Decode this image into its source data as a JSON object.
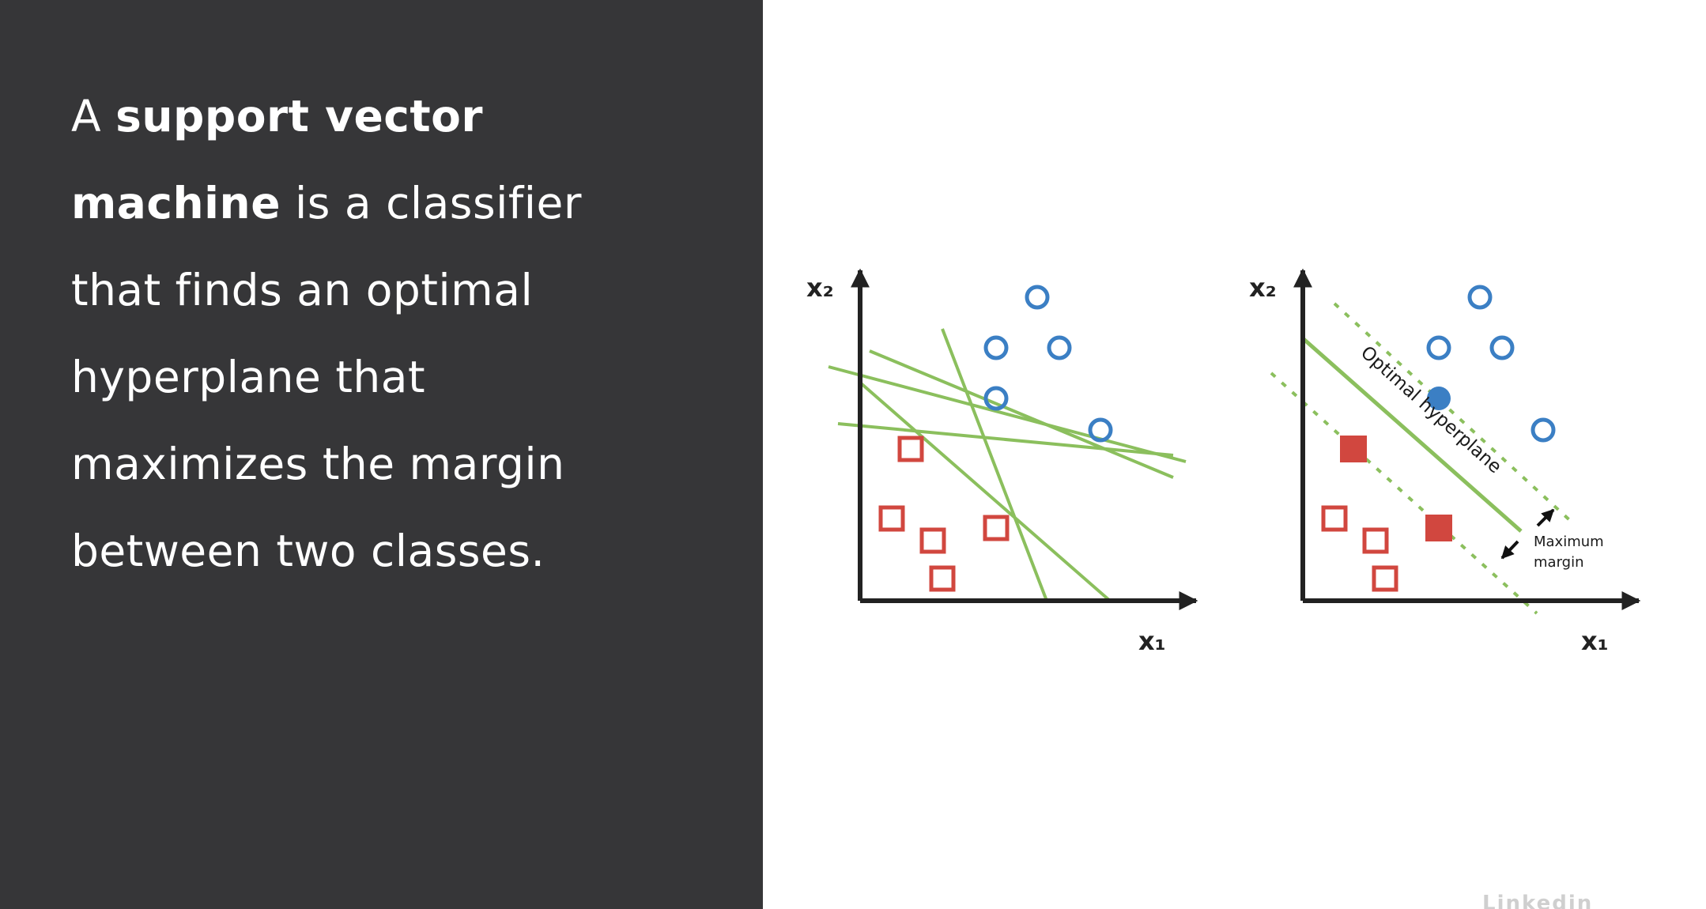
{
  "definition": {
    "lines": [
      [
        {
          "text": "A ",
          "bold": false
        },
        {
          "text": "support vector",
          "bold": true
        }
      ],
      [
        {
          "text": "machine",
          "bold": true
        },
        {
          "text": " is a classifier",
          "bold": false
        }
      ],
      [
        {
          "text": "that finds an optimal",
          "bold": false
        }
      ],
      [
        {
          "text": "hyperplane that",
          "bold": false
        }
      ],
      [
        {
          "text": "maximizes the margin",
          "bold": false
        }
      ],
      [
        {
          "text": "between two classes.",
          "bold": false
        }
      ]
    ]
  },
  "colors": {
    "panel_bg": "#363638",
    "circle_class": "#3b7fc4",
    "square_class": "#d1473f",
    "line": "#8bbf5d",
    "axis": "#222222"
  },
  "diagram_left": {
    "x_label": "x₁",
    "y_label": "x₂",
    "circles": [
      {
        "x": 5.6,
        "y": 9.6
      },
      {
        "x": 4.3,
        "y": 8.0
      },
      {
        "x": 6.3,
        "y": 8.0
      },
      {
        "x": 4.3,
        "y": 6.4
      },
      {
        "x": 7.6,
        "y": 5.4
      }
    ],
    "squares": [
      {
        "x": 1.6,
        "y": 4.8
      },
      {
        "x": 1.0,
        "y": 2.6
      },
      {
        "x": 2.3,
        "y": 1.9
      },
      {
        "x": 4.3,
        "y": 2.3
      },
      {
        "x": 2.6,
        "y": 0.7
      }
    ],
    "candidate_lines": [
      {
        "x1": -1.0,
        "y1": 7.4,
        "x2": 10.3,
        "y2": 4.4
      },
      {
        "x1": 0.3,
        "y1": 7.9,
        "x2": 9.9,
        "y2": 3.9
      },
      {
        "x1": -0.7,
        "y1": 5.6,
        "x2": 9.9,
        "y2": 4.6
      },
      {
        "x1": 2.6,
        "y1": 8.6,
        "x2": 5.9,
        "y2": 0.0
      },
      {
        "x1": 0.0,
        "y1": 6.9,
        "x2": 7.9,
        "y2": 0.0
      }
    ]
  },
  "diagram_right": {
    "x_label": "x₁",
    "y_label": "x₂",
    "hyperplane_label": "Optimal hyperplane",
    "margin_label_line1": "Maximum",
    "margin_label_line2": "margin",
    "circles": [
      {
        "x": 5.6,
        "y": 9.6,
        "filled": false
      },
      {
        "x": 4.3,
        "y": 8.0,
        "filled": false
      },
      {
        "x": 6.3,
        "y": 8.0,
        "filled": false
      },
      {
        "x": 4.3,
        "y": 6.4,
        "filled": true
      },
      {
        "x": 7.6,
        "y": 5.4,
        "filled": false
      }
    ],
    "squares": [
      {
        "x": 1.6,
        "y": 4.8,
        "filled": true
      },
      {
        "x": 1.0,
        "y": 2.6,
        "filled": false
      },
      {
        "x": 2.3,
        "y": 1.9,
        "filled": false
      },
      {
        "x": 4.3,
        "y": 2.3,
        "filled": true
      },
      {
        "x": 2.6,
        "y": 0.7,
        "filled": false
      }
    ],
    "hyperplane": {
      "x1": 0.0,
      "y1": 8.3,
      "x2": 6.9,
      "y2": 2.2
    },
    "margin_upper": {
      "x1": 1.0,
      "y1": 9.4,
      "x2": 8.6,
      "y2": 2.4
    },
    "margin_lower": {
      "x1": -1.0,
      "y1": 7.2,
      "x2": 7.4,
      "y2": -0.4
    }
  },
  "watermark": "Linkedin LEARNING"
}
